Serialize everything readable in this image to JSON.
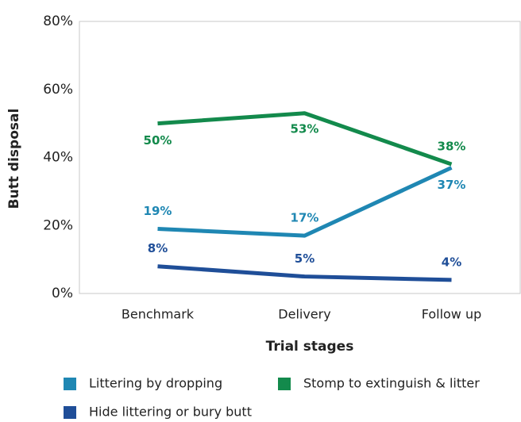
{
  "chart_data": {
    "type": "line",
    "x_label": "Trial stages",
    "y_label": "Butt disposal",
    "categories": [
      "Benchmark",
      "Delivery",
      "Follow up"
    ],
    "series": [
      {
        "name": "Littering by dropping",
        "color": "#1f87b3",
        "values": [
          19,
          17,
          37
        ],
        "value_labels": [
          "19%",
          "17%",
          "37%"
        ]
      },
      {
        "name": "Stomp to extinguish & litter",
        "color": "#138a4c",
        "values": [
          50,
          53,
          38
        ],
        "value_labels": [
          "50%",
          "53%",
          "38%"
        ]
      },
      {
        "name": "Hide littering or bury butt",
        "color": "#1f4e98",
        "values": [
          8,
          5,
          4
        ],
        "value_labels": [
          "8%",
          "5%",
          "4%"
        ]
      }
    ],
    "ylim": [
      0,
      80
    ],
    "yticks": [
      {
        "value": 0,
        "label": "0%"
      },
      {
        "value": 20,
        "label": "20%"
      },
      {
        "value": 40,
        "label": "40%"
      },
      {
        "value": 60,
        "label": "60%"
      },
      {
        "value": 80,
        "label": "80%"
      }
    ],
    "grid": false
  }
}
